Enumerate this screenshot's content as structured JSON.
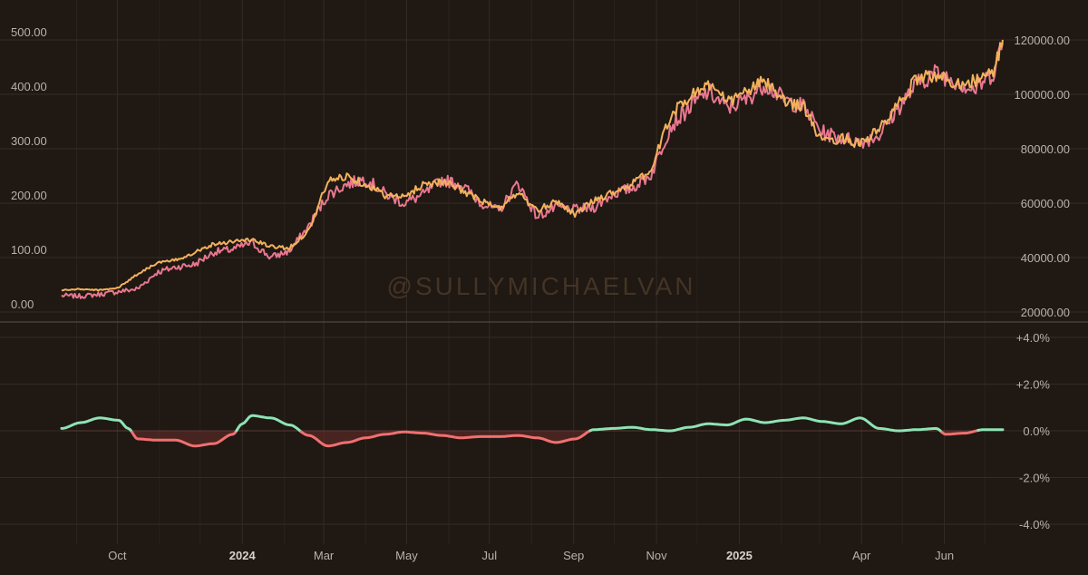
{
  "watermark": "@SULLYMICHAELVAN",
  "colors": {
    "background": "#1f1813",
    "grid": "#342b24",
    "series_a": "#f2b25c",
    "series_b": "#e8778f",
    "positive": "#8ee3b4",
    "negative": "#f07070",
    "negative_fill": "#5a2a26"
  },
  "chart_data": [
    {
      "type": "line",
      "panel": "price",
      "x_ticks": [
        {
          "label": "Oct",
          "bold": false
        },
        {
          "label": "2024",
          "bold": true
        },
        {
          "label": "Mar",
          "bold": false
        },
        {
          "label": "May",
          "bold": false
        },
        {
          "label": "Jul",
          "bold": false
        },
        {
          "label": "Sep",
          "bold": false
        },
        {
          "label": "Nov",
          "bold": false
        },
        {
          "label": "2025",
          "bold": true
        },
        {
          "label": "Apr",
          "bold": false
        },
        {
          "label": "Jun",
          "bold": false
        }
      ],
      "x_range": [
        "2023-08-21",
        "2025-07-14"
      ],
      "left_axis": {
        "range": [
          0,
          500
        ],
        "ticks": [
          "0.00",
          "100.00",
          "200.00",
          "300.00",
          "400.00",
          "500.00"
        ]
      },
      "right_axis": {
        "range": [
          20000,
          120000
        ],
        "ticks": [
          "20000.00",
          "40000.00",
          "60000.00",
          "80000.00",
          "100000.00",
          "120000.00"
        ]
      },
      "legend": "none",
      "grid": true,
      "series": [
        {
          "axis": "left",
          "points": [
            [
              "2023-08-21",
              40
            ],
            [
              "2023-09-04",
              42
            ],
            [
              "2023-09-18",
              40
            ],
            [
              "2023-10-02",
              45
            ],
            [
              "2023-10-16",
              70
            ],
            [
              "2023-10-30",
              90
            ],
            [
              "2023-11-13",
              95
            ],
            [
              "2023-11-27",
              110
            ],
            [
              "2023-12-11",
              125
            ],
            [
              "2023-12-25",
              130
            ],
            [
              "2024-01-08",
              133
            ],
            [
              "2024-01-22",
              120
            ],
            [
              "2024-02-05",
              118
            ],
            [
              "2024-02-19",
              150
            ],
            [
              "2024-03-04",
              240
            ],
            [
              "2024-03-18",
              250
            ],
            [
              "2024-04-01",
              235
            ],
            [
              "2024-04-15",
              215
            ],
            [
              "2024-04-29",
              210
            ],
            [
              "2024-05-13",
              235
            ],
            [
              "2024-05-27",
              240
            ],
            [
              "2024-06-10",
              225
            ],
            [
              "2024-06-24",
              205
            ],
            [
              "2024-07-08",
              190
            ],
            [
              "2024-07-22",
              220
            ],
            [
              "2024-08-05",
              185
            ],
            [
              "2024-08-19",
              205
            ],
            [
              "2024-09-02",
              180
            ],
            [
              "2024-09-16",
              205
            ],
            [
              "2024-09-30",
              220
            ],
            [
              "2024-10-14",
              235
            ],
            [
              "2024-10-28",
              260
            ],
            [
              "2024-11-11",
              360
            ],
            [
              "2024-11-25",
              395
            ],
            [
              "2024-12-09",
              420
            ],
            [
              "2024-12-23",
              385
            ],
            [
              "2025-01-06",
              405
            ],
            [
              "2025-01-20",
              425
            ],
            [
              "2025-02-03",
              385
            ],
            [
              "2025-02-17",
              380
            ],
            [
              "2025-03-03",
              310
            ],
            [
              "2025-03-17",
              320
            ],
            [
              "2025-03-31",
              310
            ],
            [
              "2025-04-14",
              335
            ],
            [
              "2025-04-28",
              380
            ],
            [
              "2025-05-12",
              430
            ],
            [
              "2025-05-26",
              435
            ],
            [
              "2025-06-09",
              420
            ],
            [
              "2025-06-23",
              425
            ],
            [
              "2025-07-07",
              440
            ],
            [
              "2025-07-14",
              500
            ]
          ]
        },
        {
          "axis": "right",
          "points": [
            [
              "2023-08-21",
              26000
            ],
            [
              "2023-09-04",
              25800
            ],
            [
              "2023-09-18",
              26500
            ],
            [
              "2023-10-02",
              27500
            ],
            [
              "2023-10-16",
              28500
            ],
            [
              "2023-10-30",
              34500
            ],
            [
              "2023-11-13",
              36500
            ],
            [
              "2023-11-27",
              37500
            ],
            [
              "2023-12-11",
              42000
            ],
            [
              "2023-12-25",
              43000
            ],
            [
              "2024-01-08",
              45500
            ],
            [
              "2024-01-22",
              40000
            ],
            [
              "2024-02-05",
              42500
            ],
            [
              "2024-02-19",
              51500
            ],
            [
              "2024-03-04",
              63000
            ],
            [
              "2024-03-18",
              67000
            ],
            [
              "2024-04-01",
              69000
            ],
            [
              "2024-04-15",
              63500
            ],
            [
              "2024-04-29",
              60000
            ],
            [
              "2024-05-13",
              63000
            ],
            [
              "2024-05-27",
              68500
            ],
            [
              "2024-06-10",
              67000
            ],
            [
              "2024-06-24",
              60500
            ],
            [
              "2024-07-08",
              57000
            ],
            [
              "2024-07-22",
              67500
            ],
            [
              "2024-08-05",
              55000
            ],
            [
              "2024-08-19",
              58500
            ],
            [
              "2024-09-02",
              57500
            ],
            [
              "2024-09-16",
              58500
            ],
            [
              "2024-09-30",
              63500
            ],
            [
              "2024-10-14",
              65500
            ],
            [
              "2024-10-28",
              70500
            ],
            [
              "2024-11-11",
              88000
            ],
            [
              "2024-11-25",
              95000
            ],
            [
              "2024-12-09",
              101000
            ],
            [
              "2024-12-23",
              95000
            ],
            [
              "2025-01-06",
              98000
            ],
            [
              "2025-01-20",
              104000
            ],
            [
              "2025-02-03",
              98000
            ],
            [
              "2025-02-17",
              95500
            ],
            [
              "2025-03-03",
              86000
            ],
            [
              "2025-03-17",
              84000
            ],
            [
              "2025-03-31",
              82500
            ],
            [
              "2025-04-14",
              85000
            ],
            [
              "2025-04-28",
              95000
            ],
            [
              "2025-05-12",
              104000
            ],
            [
              "2025-05-26",
              108000
            ],
            [
              "2025-06-09",
              105000
            ],
            [
              "2025-06-23",
              101500
            ],
            [
              "2025-07-07",
              108000
            ],
            [
              "2025-07-14",
              119000
            ]
          ]
        }
      ]
    },
    {
      "type": "area",
      "panel": "spread",
      "x_range": [
        "2023-08-21",
        "2025-07-14"
      ],
      "right_axis": {
        "range": [
          -4,
          4
        ],
        "ticks": [
          "+4.0%",
          "+2.0%",
          "0.0%",
          "-2.0%",
          "-4.0%"
        ]
      },
      "grid": true,
      "series": [
        {
          "points": [
            [
              "2023-08-21",
              0.1
            ],
            [
              "2023-09-04",
              0.35
            ],
            [
              "2023-09-18",
              0.55
            ],
            [
              "2023-10-02",
              0.45
            ],
            [
              "2023-10-09",
              0.1
            ],
            [
              "2023-10-16",
              -0.35
            ],
            [
              "2023-10-30",
              -0.4
            ],
            [
              "2023-11-13",
              -0.4
            ],
            [
              "2023-11-27",
              -0.65
            ],
            [
              "2023-12-11",
              -0.55
            ],
            [
              "2023-12-25",
              -0.15
            ],
            [
              "2024-01-01",
              0.3
            ],
            [
              "2024-01-08",
              0.65
            ],
            [
              "2024-01-22",
              0.55
            ],
            [
              "2024-02-05",
              0.25
            ],
            [
              "2024-02-19",
              -0.2
            ],
            [
              "2024-03-04",
              -0.65
            ],
            [
              "2024-03-18",
              -0.5
            ],
            [
              "2024-04-01",
              -0.3
            ],
            [
              "2024-04-15",
              -0.15
            ],
            [
              "2024-04-29",
              -0.05
            ],
            [
              "2024-05-13",
              -0.1
            ],
            [
              "2024-05-27",
              -0.2
            ],
            [
              "2024-06-10",
              -0.3
            ],
            [
              "2024-06-24",
              -0.25
            ],
            [
              "2024-07-08",
              -0.25
            ],
            [
              "2024-07-22",
              -0.2
            ],
            [
              "2024-08-05",
              -0.3
            ],
            [
              "2024-08-19",
              -0.5
            ],
            [
              "2024-09-02",
              -0.35
            ],
            [
              "2024-09-16",
              0.05
            ],
            [
              "2024-09-30",
              0.1
            ],
            [
              "2024-10-14",
              0.15
            ],
            [
              "2024-10-28",
              0.05
            ],
            [
              "2024-11-11",
              0.0
            ],
            [
              "2024-11-25",
              0.15
            ],
            [
              "2024-12-09",
              0.3
            ],
            [
              "2024-12-23",
              0.25
            ],
            [
              "2025-01-06",
              0.5
            ],
            [
              "2025-01-20",
              0.35
            ],
            [
              "2025-02-03",
              0.45
            ],
            [
              "2025-02-17",
              0.55
            ],
            [
              "2025-03-03",
              0.4
            ],
            [
              "2025-03-17",
              0.3
            ],
            [
              "2025-03-31",
              0.55
            ],
            [
              "2025-04-14",
              0.1
            ],
            [
              "2025-04-28",
              0.0
            ],
            [
              "2025-05-12",
              0.05
            ],
            [
              "2025-05-26",
              0.1
            ],
            [
              "2025-06-02",
              -0.15
            ],
            [
              "2025-06-16",
              -0.1
            ],
            [
              "2025-06-30",
              0.05
            ],
            [
              "2025-07-14",
              0.05
            ]
          ]
        }
      ]
    }
  ]
}
